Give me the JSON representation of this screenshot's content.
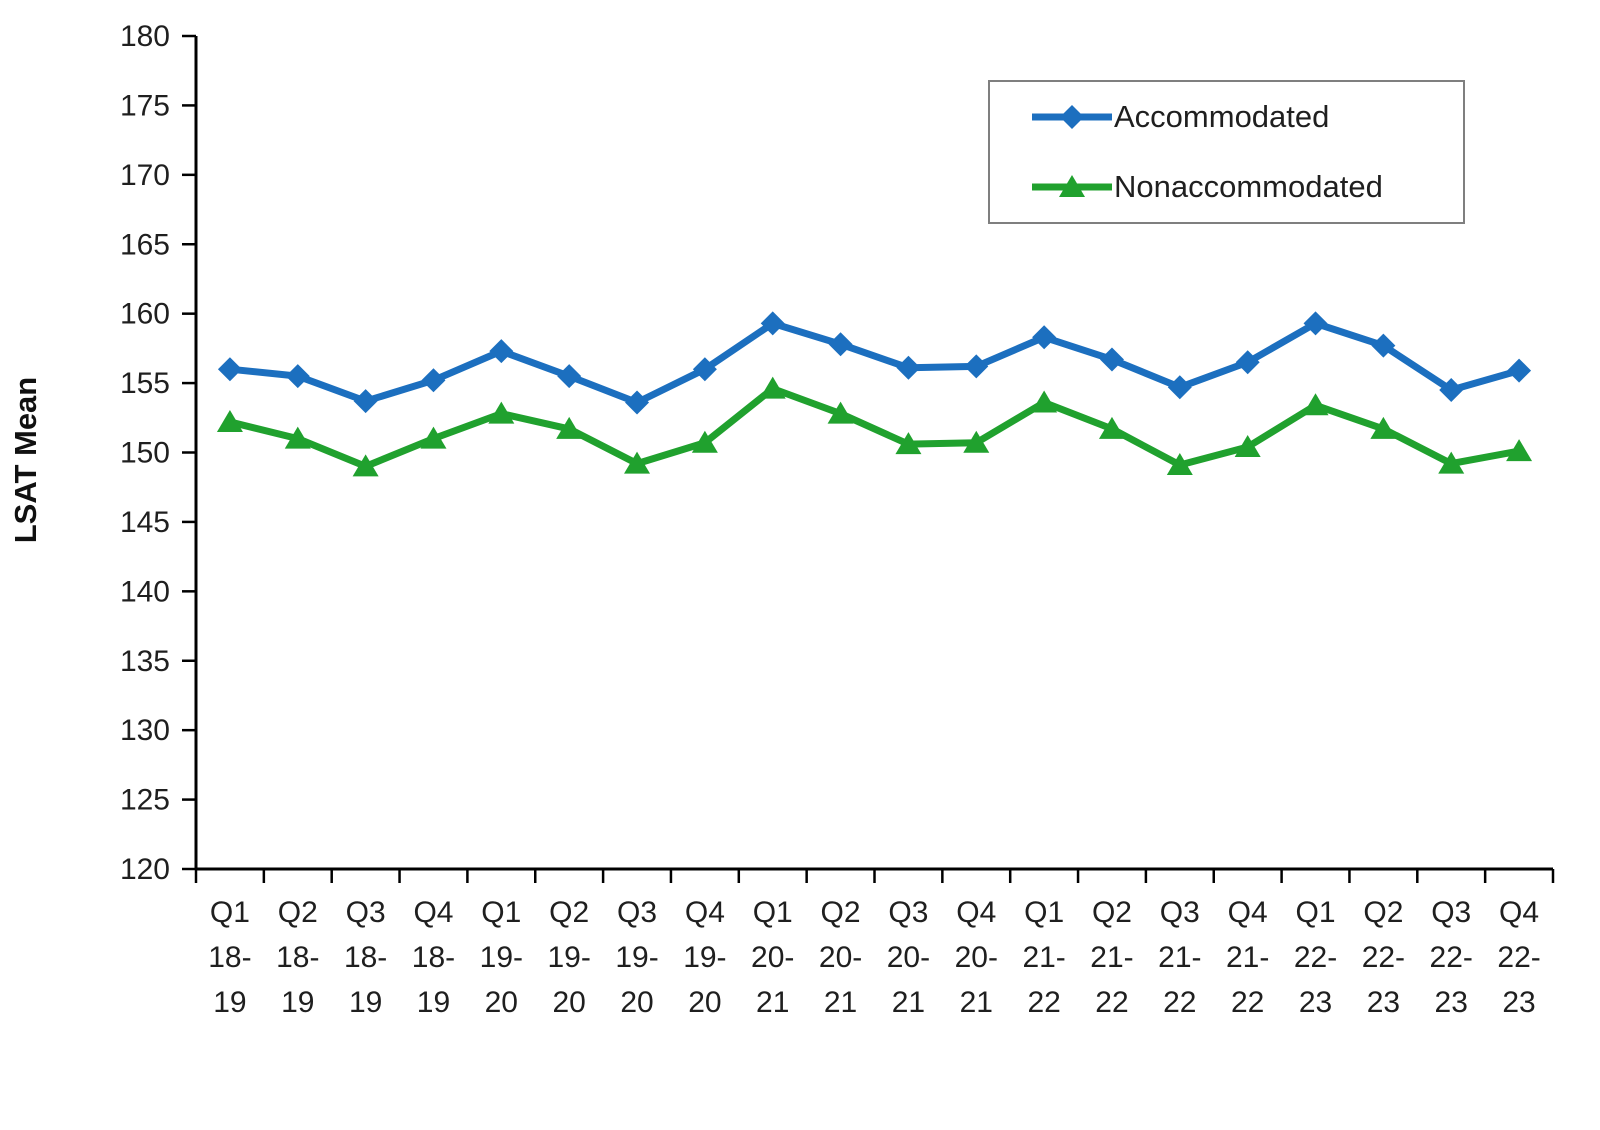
{
  "chart_data": {
    "type": "line",
    "title": "",
    "xlabel": "",
    "ylabel": "LSAT Mean",
    "ylim": [
      120,
      180
    ],
    "ytick_step": 5,
    "grid": false,
    "legend_position": "top-right",
    "categories": [
      [
        "Q1",
        "18-",
        "19"
      ],
      [
        "Q2",
        "18-",
        "19"
      ],
      [
        "Q3",
        "18-",
        "19"
      ],
      [
        "Q4",
        "18-",
        "19"
      ],
      [
        "Q1",
        "19-",
        "20"
      ],
      [
        "Q2",
        "19-",
        "20"
      ],
      [
        "Q3",
        "19-",
        "20"
      ],
      [
        "Q4",
        "19-",
        "20"
      ],
      [
        "Q1",
        "20-",
        "21"
      ],
      [
        "Q2",
        "20-",
        "21"
      ],
      [
        "Q3",
        "20-",
        "21"
      ],
      [
        "Q4",
        "20-",
        "21"
      ],
      [
        "Q1",
        "21-",
        "22"
      ],
      [
        "Q2",
        "21-",
        "22"
      ],
      [
        "Q3",
        "21-",
        "22"
      ],
      [
        "Q4",
        "21-",
        "22"
      ],
      [
        "Q1",
        "22-",
        "23"
      ],
      [
        "Q2",
        "22-",
        "23"
      ],
      [
        "Q3",
        "22-",
        "23"
      ],
      [
        "Q4",
        "22-",
        "23"
      ]
    ],
    "series": [
      {
        "name": "Accommodated",
        "marker": "diamond",
        "color": "#1c6fbf",
        "values": [
          156.0,
          155.5,
          153.7,
          155.2,
          157.3,
          155.5,
          153.6,
          156.0,
          159.3,
          157.8,
          156.1,
          156.2,
          158.3,
          156.7,
          154.7,
          156.5,
          159.3,
          157.7,
          154.5,
          155.9
        ]
      },
      {
        "name": "Nonaccommodated",
        "marker": "triangle",
        "color": "#20a12e",
        "values": [
          152.2,
          151.0,
          149.0,
          151.0,
          152.8,
          151.7,
          149.2,
          150.7,
          154.6,
          152.8,
          150.6,
          150.7,
          153.6,
          151.7,
          149.1,
          150.4,
          153.4,
          151.7,
          149.2,
          150.1
        ]
      }
    ],
    "colors": {
      "axis": "#000000",
      "text": "#1f1f1f",
      "legend_border": "#7f7f7f",
      "background": "#ffffff"
    }
  }
}
